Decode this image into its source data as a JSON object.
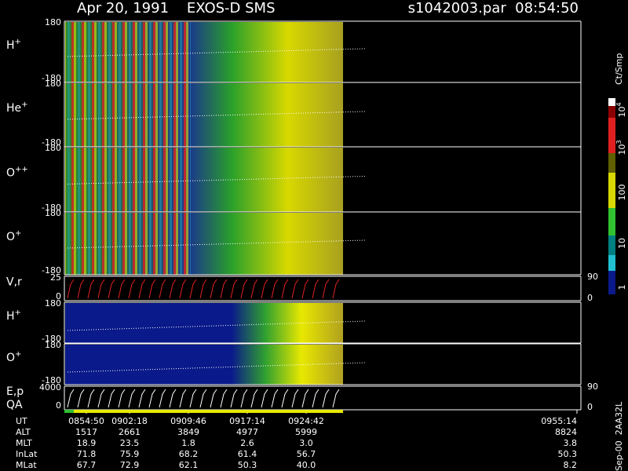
{
  "header": {
    "title": "Apr 20, 1991    EXOS-D SMS",
    "file": "s1042003.par  08:54:50"
  },
  "panels": [
    {
      "label": "H",
      "sup": "+",
      "top": "180",
      "bottom": "-180"
    },
    {
      "label": "He",
      "sup": "+",
      "top": "180",
      "bottom": "-180"
    },
    {
      "label": "O",
      "sup": "++",
      "top": "180",
      "bottom": "-180"
    },
    {
      "label": "O",
      "sup": "+",
      "top": "180",
      "bottom": "-180"
    },
    {
      "label": "V,r",
      "top": "25",
      "bottom": "0",
      "right_top": "90",
      "right_bottom": "0"
    },
    {
      "label": "H",
      "sup": "+",
      "top": "180",
      "bottom": "-180"
    },
    {
      "label": "O",
      "sup": "+",
      "top": "180",
      "bottom": "-180"
    },
    {
      "label": "E,p",
      "label2": "QA",
      "top": "4000",
      "bottom": "0",
      "right_top": "90",
      "right_bottom": "0"
    }
  ],
  "colorbar": {
    "unit": "Ct/Smp",
    "labels": [
      {
        "base": "10",
        "exp": "4"
      },
      {
        "base": "10",
        "exp": "3"
      },
      {
        "base": "100"
      },
      {
        "base": "10"
      },
      {
        "base": "1"
      }
    ]
  },
  "orbit": {
    "rows": [
      {
        "name": "UT",
        "values": [
          "0854:50",
          "0902:18",
          "0909:46",
          "0917:14",
          "0924:42",
          "0955:14"
        ]
      },
      {
        "name": "ALT",
        "values": [
          "1517",
          "2661",
          "3849",
          "4977",
          "5999",
          "8824"
        ]
      },
      {
        "name": "MLT",
        "values": [
          "18.9",
          "23.5",
          "1.8",
          "2.6",
          "3.0",
          "3.8"
        ]
      },
      {
        "name": "InLat",
        "values": [
          "71.8",
          "75.9",
          "68.2",
          "61.4",
          "56.7",
          "50.3"
        ]
      },
      {
        "name": "MLat",
        "values": [
          "67.7",
          "72.9",
          "62.1",
          "50.3",
          "40.0",
          "8.2"
        ]
      }
    ]
  },
  "footer": "Sep-00  2AA32L"
}
